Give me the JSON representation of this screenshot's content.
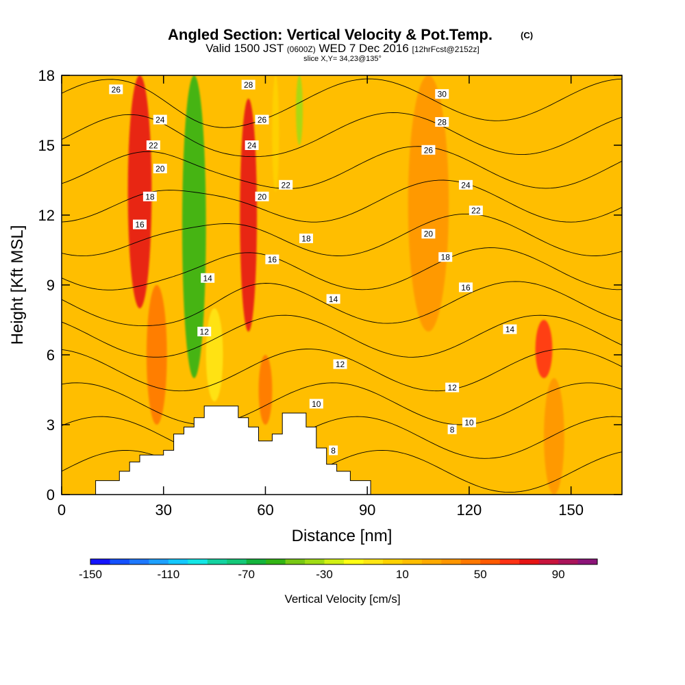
{
  "title": {
    "main": "Angled Section: Vertical Velocity & Pot.Temp.",
    "main_unit": "(C)",
    "valid_prefix": "Valid 1500 JST",
    "valid_zulu": "(0600Z)",
    "valid_date": "WED 7 Dec 2016",
    "forecast": "[12hrFcst@2152z]",
    "slice": "slice X,Y= 34,23@135°"
  },
  "colorbar": {
    "label": "Vertical Velocity [cm/s]",
    "min": -150,
    "max": 110,
    "step": 10,
    "tick_labels": [
      "-150",
      "-110",
      "-70",
      "-30",
      "10",
      "50",
      "90"
    ],
    "tick_values": [
      -150,
      -110,
      -70,
      -30,
      10,
      50,
      90
    ],
    "colors": [
      "#1414ff",
      "#1450ff",
      "#1e78ff",
      "#1ea0ff",
      "#14c8ff",
      "#14e6e6",
      "#14d2a0",
      "#14c878",
      "#14b43c",
      "#32b414",
      "#78c814",
      "#a0dc14",
      "#d2f014",
      "#ffff14",
      "#ffe614",
      "#ffd200",
      "#ffbe00",
      "#ffaa00",
      "#ff9600",
      "#ff7800",
      "#ff5a00",
      "#ff3214",
      "#e61414",
      "#c8143c",
      "#aa145a",
      "#8c1478"
    ]
  },
  "chart_data": {
    "type": "heatmap",
    "title": "Angled Section: Vertical Velocity & Pot.Temp.",
    "xlabel": "Distance [nm]",
    "ylabel": "Height [Kft MSL]",
    "xlim": [
      0,
      165
    ],
    "ylim": [
      0,
      18
    ],
    "xticks": [
      0,
      30,
      60,
      90,
      120,
      150
    ],
    "yticks": [
      0,
      3,
      6,
      9,
      12,
      15,
      18
    ],
    "fill_variable": "Vertical Velocity [cm/s]",
    "background_value": 15,
    "velocity_features": [
      {
        "x": 23,
        "y_top": 18,
        "y_bottom": 8,
        "width": 7,
        "value": 70
      },
      {
        "x": 28,
        "y_top": 9,
        "y_bottom": 3,
        "width": 6,
        "value": 40
      },
      {
        "x": 39,
        "y_top": 18,
        "y_bottom": 5,
        "width": 7,
        "value": -60
      },
      {
        "x": 45,
        "y_top": 8,
        "y_bottom": 4,
        "width": 5,
        "value": -10
      },
      {
        "x": 55,
        "y_top": 17,
        "y_bottom": 7,
        "width": 5,
        "value": 70
      },
      {
        "x": 60,
        "y_top": 6,
        "y_bottom": 3,
        "width": 4,
        "value": 40
      },
      {
        "x": 70,
        "y_top": 18,
        "y_bottom": 15,
        "width": 2,
        "value": -40
      },
      {
        "x": 63,
        "y_top": 18,
        "y_bottom": 13,
        "width": 2,
        "value": 0
      },
      {
        "x": 108,
        "y_top": 18,
        "y_bottom": 7,
        "width": 12,
        "value": 30
      },
      {
        "x": 142,
        "y_top": 7.5,
        "y_bottom": 5,
        "width": 5,
        "value": 60
      },
      {
        "x": 145,
        "y_top": 5,
        "y_bottom": 0,
        "width": 6,
        "value": 30
      }
    ],
    "theta_contour_levels": [
      8,
      10,
      12,
      14,
      16,
      18,
      20,
      22,
      24,
      26,
      28,
      30
    ],
    "theta_contour_labels": [
      {
        "text": "26",
        "x": 16,
        "y": 17.4
      },
      {
        "text": "24",
        "x": 29,
        "y": 16.1
      },
      {
        "text": "22",
        "x": 27,
        "y": 15.0
      },
      {
        "text": "20",
        "x": 29,
        "y": 14.0
      },
      {
        "text": "18",
        "x": 26,
        "y": 12.8
      },
      {
        "text": "16",
        "x": 23,
        "y": 11.6
      },
      {
        "text": "28",
        "x": 55,
        "y": 17.6
      },
      {
        "text": "26",
        "x": 59,
        "y": 16.1
      },
      {
        "text": "24",
        "x": 56,
        "y": 15.0
      },
      {
        "text": "22",
        "x": 66,
        "y": 13.3
      },
      {
        "text": "20",
        "x": 59,
        "y": 12.8
      },
      {
        "text": "18",
        "x": 72,
        "y": 11.0
      },
      {
        "text": "16",
        "x": 62,
        "y": 10.1
      },
      {
        "text": "14",
        "x": 43,
        "y": 9.3
      },
      {
        "text": "14",
        "x": 80,
        "y": 8.4
      },
      {
        "text": "12",
        "x": 42,
        "y": 7.0
      },
      {
        "text": "12",
        "x": 82,
        "y": 5.6
      },
      {
        "text": "10",
        "x": 75,
        "y": 3.9
      },
      {
        "text": "8",
        "x": 80,
        "y": 1.9
      },
      {
        "text": "30",
        "x": 112,
        "y": 17.2
      },
      {
        "text": "28",
        "x": 112,
        "y": 16.0
      },
      {
        "text": "26",
        "x": 108,
        "y": 14.8
      },
      {
        "text": "24",
        "x": 119,
        "y": 13.3
      },
      {
        "text": "22",
        "x": 122,
        "y": 12.2
      },
      {
        "text": "20",
        "x": 108,
        "y": 11.2
      },
      {
        "text": "18",
        "x": 113,
        "y": 10.2
      },
      {
        "text": "16",
        "x": 119,
        "y": 8.9
      },
      {
        "text": "14",
        "x": 132,
        "y": 7.1
      },
      {
        "text": "12",
        "x": 115,
        "y": 4.6
      },
      {
        "text": "10",
        "x": 120,
        "y": 3.1
      },
      {
        "text": "8",
        "x": 115,
        "y": 2.8
      }
    ],
    "terrain": [
      [
        0,
        0
      ],
      [
        10,
        0
      ],
      [
        10,
        0.6
      ],
      [
        17,
        0.6
      ],
      [
        17,
        1.0
      ],
      [
        20,
        1.0
      ],
      [
        20,
        1.4
      ],
      [
        23,
        1.4
      ],
      [
        23,
        1.7
      ],
      [
        30,
        1.7
      ],
      [
        30,
        1.9
      ],
      [
        33,
        1.9
      ],
      [
        33,
        2.6
      ],
      [
        36,
        2.6
      ],
      [
        36,
        2.9
      ],
      [
        39,
        2.9
      ],
      [
        39,
        3.3
      ],
      [
        42,
        3.3
      ],
      [
        42,
        3.8
      ],
      [
        52,
        3.8
      ],
      [
        52,
        3.3
      ],
      [
        55,
        3.3
      ],
      [
        55,
        2.9
      ],
      [
        58,
        2.9
      ],
      [
        58,
        2.3
      ],
      [
        62,
        2.3
      ],
      [
        62,
        2.6
      ],
      [
        65,
        2.6
      ],
      [
        65,
        3.5
      ],
      [
        72,
        3.5
      ],
      [
        72,
        2.9
      ],
      [
        75,
        2.9
      ],
      [
        75,
        2.0
      ],
      [
        78,
        2.0
      ],
      [
        78,
        1.3
      ],
      [
        81,
        1.3
      ],
      [
        81,
        1.0
      ],
      [
        85,
        1.0
      ],
      [
        85,
        0.6
      ],
      [
        91,
        0.6
      ],
      [
        91,
        0
      ],
      [
        165,
        0
      ]
    ]
  }
}
